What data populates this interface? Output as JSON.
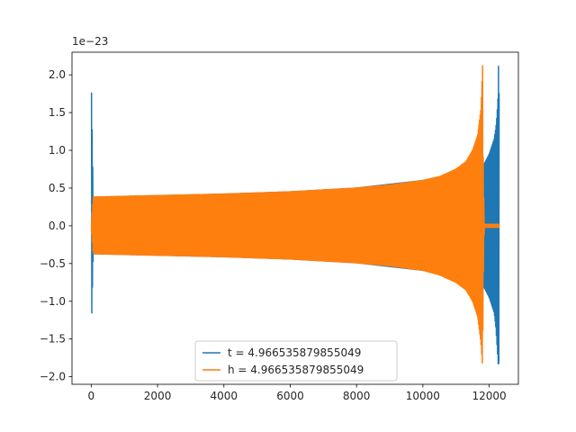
{
  "chart_data": {
    "type": "line",
    "title": "",
    "xlabel": "",
    "ylabel": "",
    "y_offset_label": "1e−23",
    "xlim": [
      -580,
      12880
    ],
    "ylim": [
      -2.1,
      2.3
    ],
    "x_ticks": [
      0,
      2000,
      4000,
      6000,
      8000,
      10000,
      12000
    ],
    "x_tick_labels": [
      "0",
      "2000",
      "4000",
      "6000",
      "8000",
      "10000",
      "12000"
    ],
    "y_ticks": [
      -2.0,
      -1.5,
      -1.0,
      -0.5,
      0.0,
      0.5,
      1.0,
      1.5,
      2.0
    ],
    "y_tick_labels": [
      "−2.0",
      "−1.5",
      "−1.0",
      "−0.5",
      "0.0",
      "0.5",
      "1.0",
      "1.5",
      "2.0"
    ],
    "grid": false,
    "legend_position": "lower center",
    "series": [
      {
        "name": "t = 4.966535879855049",
        "color": "#1f77b4",
        "description": "oscillation",
        "envelope_x": [
          0,
          60,
          1000,
          2000,
          4000,
          6000,
          8000,
          10000,
          11000,
          11500,
          11800,
          11850,
          12000,
          12150,
          12200,
          12230,
          12260,
          12280,
          12300
        ],
        "envelope_upper": [
          1.99,
          0.38,
          0.39,
          0.4,
          0.42,
          0.45,
          0.5,
          0.6,
          0.7,
          0.78,
          0.82,
          0.82,
          0.95,
          1.15,
          1.3,
          1.45,
          1.65,
          2.12,
          1.72
        ],
        "envelope_lower": [
          -1.48,
          -0.37,
          -0.38,
          -0.39,
          -0.41,
          -0.44,
          -0.49,
          -0.59,
          -0.7,
          -0.78,
          -0.82,
          -0.82,
          -0.95,
          -1.15,
          -1.35,
          -1.55,
          -1.75,
          -1.9,
          -1.72
        ]
      },
      {
        "name": "h = 4.966535879855049",
        "color": "#ff7f0e",
        "description": "oscillation",
        "envelope_x": [
          0,
          60,
          1000,
          2000,
          4000,
          6000,
          8000,
          9000,
          10000,
          10500,
          11000,
          11300,
          11500,
          11650,
          11750,
          11800,
          11820,
          11850,
          12300
        ],
        "envelope_upper": [
          0.0,
          0.38,
          0.39,
          0.4,
          0.42,
          0.45,
          0.5,
          0.54,
          0.6,
          0.65,
          0.75,
          0.85,
          1.0,
          1.2,
          1.55,
          2.12,
          0.8,
          0.02,
          0.02
        ],
        "envelope_lower": [
          0.0,
          -0.37,
          -0.38,
          -0.39,
          -0.41,
          -0.44,
          -0.49,
          -0.53,
          -0.59,
          -0.65,
          -0.75,
          -0.85,
          -1.0,
          -1.2,
          -1.55,
          -1.88,
          -0.8,
          -0.02,
          -0.02
        ]
      }
    ]
  }
}
